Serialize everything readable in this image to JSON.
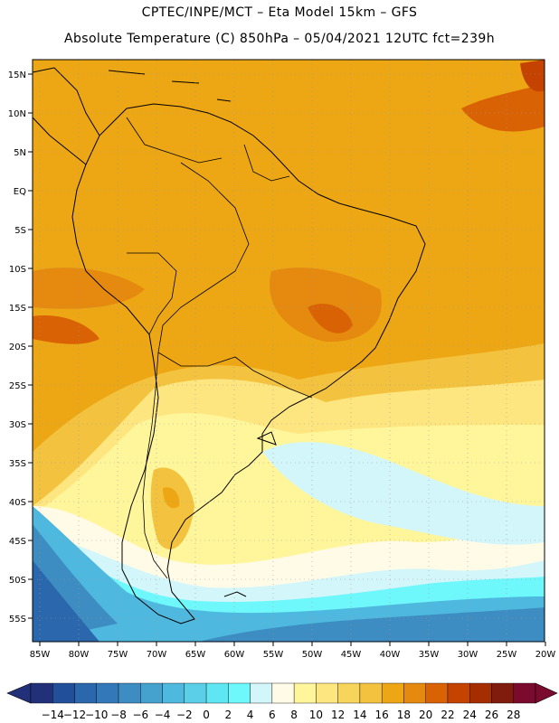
{
  "header": {
    "line1": "CPTEC/INPE/MCT –   Eta Model 15km – GFS",
    "line2": "Absolute Temperature (C) 850hPa – 05/04/2021 12UTC fct=239h"
  },
  "lat_labels": [
    "15N",
    "10N",
    "5N",
    "EQ",
    "5S",
    "10S",
    "15S",
    "20S",
    "25S",
    "30S",
    "35S",
    "40S",
    "45S",
    "50S",
    "55S"
  ],
  "lon_labels": [
    "85W",
    "80W",
    "75W",
    "70W",
    "65W",
    "60W",
    "55W",
    "50W",
    "45W",
    "40W",
    "35W",
    "30W",
    "25W",
    "20W"
  ],
  "colorbar": {
    "labels": [
      "-14",
      "-12",
      "-10",
      "-8",
      "-6",
      "-4",
      "-2",
      "0",
      "2",
      "4",
      "6",
      "8",
      "10",
      "12",
      "14",
      "16",
      "18",
      "20",
      "22",
      "24",
      "26",
      "28"
    ],
    "colors": [
      "#22307a",
      "#224f9a",
      "#2a67ad",
      "#3378b8",
      "#3d8dc2",
      "#45a2cf",
      "#4fb8de",
      "#5bcfe8",
      "#5ee6f2",
      "#6ff8fb",
      "#d3f6fb",
      "#fffbe6",
      "#fff59a",
      "#fde680",
      "#f7d55a",
      "#f3c23e",
      "#eda714",
      "#e58a0e",
      "#d96205",
      "#c44300",
      "#a52e00",
      "#7f1c0d",
      "#7a0b2f"
    ],
    "left_arrow_color": "#22307a",
    "right_arrow_color": "#7a0b2f"
  },
  "colors": {
    "warm_core": "#eda714",
    "very_warm": "#d96205",
    "mid_warm": "#f3c23e",
    "mild": "#fde680",
    "pale": "#fff59a",
    "cream": "#fffbe6",
    "ice": "#d3f6fb",
    "cyan": "#6ff8fb",
    "sky": "#4fb8de",
    "cool": "#3d8dc2",
    "cold": "#2a67ad",
    "coast_line": "#000000"
  }
}
